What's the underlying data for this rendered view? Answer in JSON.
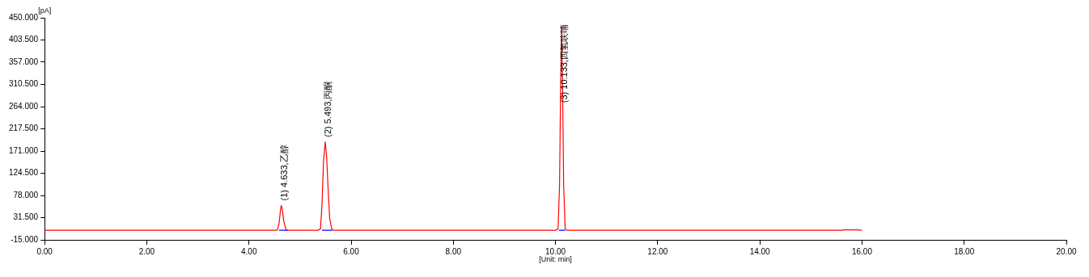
{
  "chart_data": {
    "type": "line",
    "xlabel": "[Unit: min]",
    "ylabel": "[pA]",
    "xlim": [
      0,
      20
    ],
    "xticks": [
      {
        "value": 0,
        "label": "0.00"
      },
      {
        "value": 2,
        "label": "2.00"
      },
      {
        "value": 4,
        "label": "4.00"
      },
      {
        "value": 6,
        "label": "6.00"
      },
      {
        "value": 8,
        "label": "8.00"
      },
      {
        "value": 10,
        "label": "10.00"
      },
      {
        "value": 12,
        "label": "12.00"
      },
      {
        "value": 14,
        "label": "14.00"
      },
      {
        "value": 16,
        "label": "16.00"
      },
      {
        "value": 18,
        "label": "18.00"
      },
      {
        "value": 20,
        "label": "20.00"
      }
    ],
    "ylim": [
      -15,
      450
    ],
    "yticks": [
      {
        "value": -15,
        "label": "-15.000"
      },
      {
        "value": 31.5,
        "label": "31.500"
      },
      {
        "value": 78,
        "label": "78.000"
      },
      {
        "value": 124.5,
        "label": "124.500"
      },
      {
        "value": 171,
        "label": "171.000"
      },
      {
        "value": 217.5,
        "label": "217.500"
      },
      {
        "value": 264,
        "label": "264.000"
      },
      {
        "value": 310.5,
        "label": "310.500"
      },
      {
        "value": 357,
        "label": "357.000"
      },
      {
        "value": 403.5,
        "label": "403.500"
      },
      {
        "value": 450,
        "label": "450.000"
      }
    ],
    "series": [
      {
        "color": "#ff0000",
        "x": [
          0,
          4.5,
          4.56,
          4.59,
          4.62,
          4.633,
          4.65,
          4.68,
          4.72,
          4.76,
          5.35,
          5.4,
          5.43,
          5.46,
          5.493,
          5.52,
          5.55,
          5.58,
          5.62,
          5.66,
          10.0,
          10.05,
          10.08,
          10.1,
          10.12,
          10.14,
          10.16,
          10.19,
          10.22,
          15.6,
          15.65,
          15.9,
          16.0
        ],
        "values": [
          5,
          5,
          6,
          20,
          50,
          57,
          50,
          25,
          8,
          5,
          5,
          8,
          60,
          150,
          190,
          160,
          90,
          30,
          8,
          5,
          5,
          8,
          100,
          300,
          432,
          300,
          100,
          8,
          5,
          5,
          6,
          6,
          5
        ]
      },
      {
        "color": "#0000ff",
        "x": [
          4.59,
          4.76,
          4.8,
          5.43,
          5.63,
          5.7,
          10.07,
          10.19
        ],
        "values": [
          5,
          5,
          null,
          5,
          5,
          null,
          5,
          5
        ]
      }
    ],
    "annotations": [
      {
        "text": "(1) 4.633,乙醇",
        "x": 4.633,
        "y": 57
      },
      {
        "text": "(2) 5.493,丙酮",
        "x": 5.493,
        "y": 190
      },
      {
        "text": "(3) 10.133,四氢呋喃",
        "x": 10.12,
        "y": 262
      }
    ],
    "grid": false,
    "legend": false,
    "marker": "none",
    "line_style": "solid"
  }
}
